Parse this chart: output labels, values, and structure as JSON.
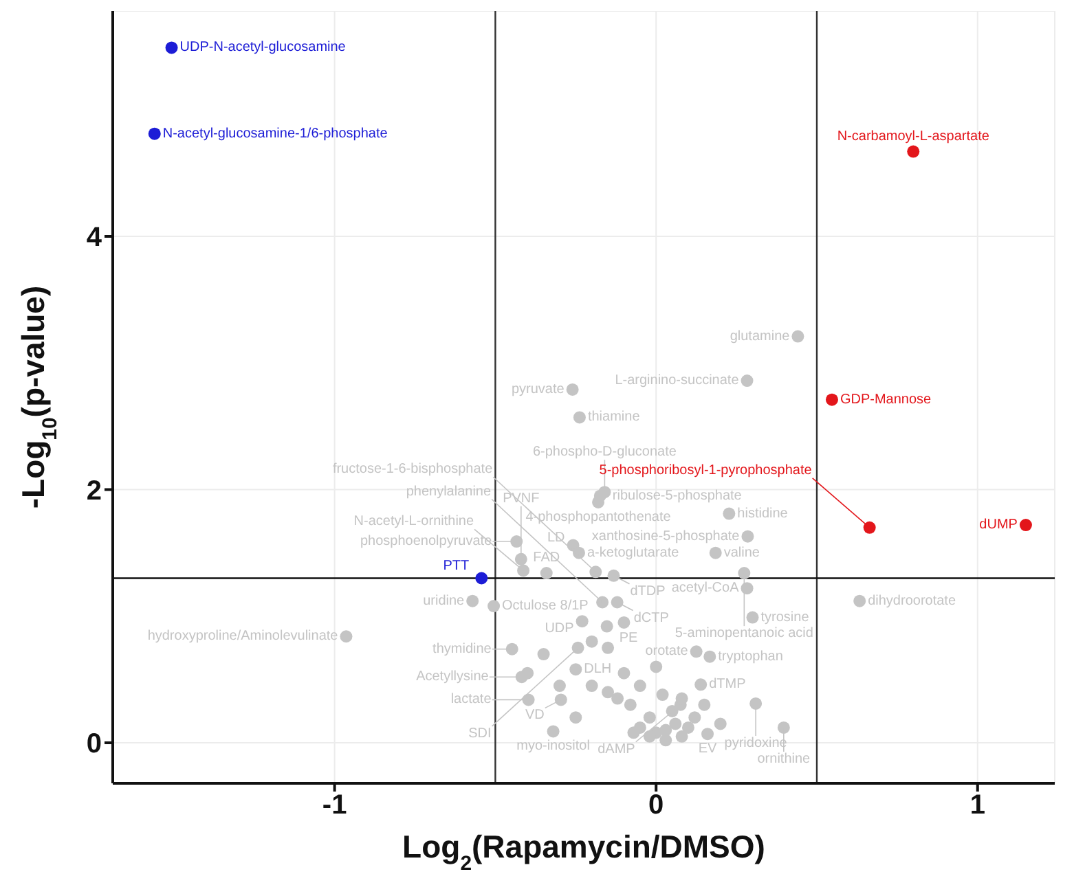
{
  "chart_data": {
    "type": "scatter",
    "xlabel": "Log$_{2}$(Rapamycin/DMSO)",
    "ylabel": "-Log$_{10}$(p-value)",
    "xlim": [
      -1.69,
      1.24
    ],
    "ylim": [
      -0.32,
      5.78
    ],
    "xticks": [
      -1,
      0,
      1
    ],
    "yticks": [
      0,
      2,
      4
    ],
    "grid": true,
    "marker": "circle",
    "ref_lines": [
      {
        "axis": "x",
        "value": -0.5,
        "color": "#333333"
      },
      {
        "axis": "x",
        "value": 0.5,
        "color": "#333333"
      },
      {
        "axis": "y",
        "value": 1.3,
        "color": "#111111"
      }
    ],
    "series": [
      {
        "color": "#1c1cd6",
        "x": [
          -1.507,
          -1.56,
          -0.543
        ],
        "values": [
          5.49,
          4.81,
          1.3
        ]
      },
      {
        "color": "#e3161b",
        "x": [
          0.8,
          0.547,
          0.664,
          1.15
        ],
        "values": [
          4.67,
          2.71,
          1.7,
          1.72
        ]
      },
      {
        "color": "#c4c4c4",
        "x": [
          0.441,
          0.283,
          -0.26,
          -0.238,
          -0.174,
          -0.18,
          -0.16,
          0.227,
          0.285,
          0.185,
          0.274,
          0.283,
          0.3,
          0.633,
          0.125,
          0.167,
          0.139,
          0.31,
          0.397,
          0.16,
          0.076,
          -0.296,
          -0.32,
          -0.397,
          -0.448,
          -0.418,
          -0.505,
          -0.571,
          -0.964,
          -0.434,
          -0.413,
          -0.341,
          -0.258,
          -0.24,
          -0.188,
          -0.132,
          -0.167,
          -0.121,
          -0.23,
          -0.153,
          -0.243,
          -0.25,
          -0.42,
          -0.05,
          0.0,
          0.03,
          0.06,
          -0.02,
          0.1,
          0.12,
          0.05,
          -0.08,
          -0.12,
          -0.15,
          -0.2,
          -0.1,
          -0.05,
          0.02,
          0.08,
          0.15,
          0.2,
          -0.25,
          -0.3,
          -0.35,
          -0.4,
          -0.2,
          -0.15,
          -0.1,
          0.0,
          -0.02,
          0.03,
          -0.07,
          0.08
        ],
        "values": [
          3.21,
          2.86,
          2.79,
          2.57,
          1.95,
          1.9,
          1.98,
          1.81,
          1.63,
          1.5,
          1.34,
          1.22,
          0.99,
          1.12,
          0.72,
          0.68,
          0.46,
          0.31,
          0.12,
          0.07,
          0.3,
          0.34,
          0.09,
          0.34,
          0.74,
          0.52,
          1.08,
          1.12,
          0.84,
          1.59,
          1.36,
          1.34,
          1.56,
          1.5,
          1.35,
          1.32,
          1.11,
          1.11,
          0.96,
          0.92,
          0.75,
          0.58,
          1.45,
          0.12,
          0.08,
          0.1,
          0.15,
          0.2,
          0.12,
          0.2,
          0.25,
          0.3,
          0.35,
          0.4,
          0.45,
          0.55,
          0.45,
          0.38,
          0.35,
          0.3,
          0.15,
          0.2,
          0.45,
          0.7,
          0.55,
          0.8,
          0.75,
          0.95,
          0.6,
          0.05,
          0.02,
          0.08,
          0.05
        ]
      }
    ],
    "annotations": [
      {
        "text": "UDP-N-acetyl-glucosamine",
        "x": -1.507,
        "y": 5.49
      },
      {
        "text": "N-acetyl-glucosamine-1/6-phosphate",
        "x": -1.56,
        "y": 4.81
      },
      {
        "text": "PTT",
        "x": -0.543,
        "y": 1.3
      },
      {
        "text": "N-carbamoyl-L-aspartate",
        "x": 0.8,
        "y": 4.67
      },
      {
        "text": "GDP-Mannose",
        "x": 0.547,
        "y": 2.71
      },
      {
        "text": "5-phosphoribosyl-1-pyrophosphate",
        "x": 0.664,
        "y": 1.7
      },
      {
        "text": "dUMP",
        "x": 1.15,
        "y": 1.72
      },
      {
        "text": "glutamine",
        "x": 0.441,
        "y": 3.21
      },
      {
        "text": "L-arginino-succinate",
        "x": 0.283,
        "y": 2.86
      },
      {
        "text": "pyruvate",
        "x": -0.26,
        "y": 2.79
      },
      {
        "text": "thiamine",
        "x": -0.238,
        "y": 2.57
      },
      {
        "text": "ribulose-5-phosphate",
        "x": -0.174,
        "y": 1.95
      },
      {
        "text": "4-phosphopantothenate",
        "x": -0.18,
        "y": 1.9
      },
      {
        "text": "6-phospho-D-gluconate",
        "x": -0.16,
        "y": 1.98
      },
      {
        "text": "histidine",
        "x": 0.227,
        "y": 1.81
      },
      {
        "text": "xanthosine-5-phosphate",
        "x": 0.285,
        "y": 1.63
      },
      {
        "text": "valine",
        "x": 0.185,
        "y": 1.5
      },
      {
        "text": "5-aminopentanoic acid",
        "x": 0.274,
        "y": 1.34
      },
      {
        "text": "acetyl-CoA",
        "x": 0.283,
        "y": 1.22
      },
      {
        "text": "tyrosine",
        "x": 0.3,
        "y": 0.99
      },
      {
        "text": "dihydroorotate",
        "x": 0.633,
        "y": 1.12
      },
      {
        "text": "orotate",
        "x": 0.125,
        "y": 0.72
      },
      {
        "text": "tryptophan",
        "x": 0.167,
        "y": 0.68
      },
      {
        "text": "dTMP",
        "x": 0.139,
        "y": 0.46
      },
      {
        "text": "pyridoxine",
        "x": 0.31,
        "y": 0.31
      },
      {
        "text": "ornithine",
        "x": 0.397,
        "y": 0.12
      },
      {
        "text": "EV",
        "x": 0.16,
        "y": 0.07
      },
      {
        "text": "dAMP",
        "x": 0.076,
        "y": 0.3
      },
      {
        "text": "VD",
        "x": -0.296,
        "y": 0.34
      },
      {
        "text": "myo-inositol",
        "x": -0.32,
        "y": 0.09
      },
      {
        "text": "lactate",
        "x": -0.397,
        "y": 0.34
      },
      {
        "text": "thymidine",
        "x": -0.448,
        "y": 0.74
      },
      {
        "text": "Acetyllysine",
        "x": -0.418,
        "y": 0.52
      },
      {
        "text": "Octulose 8/1P",
        "x": -0.505,
        "y": 1.08
      },
      {
        "text": "uridine",
        "x": -0.571,
        "y": 1.12
      },
      {
        "text": "hydroxyproline/Aminolevulinate",
        "x": -0.964,
        "y": 0.84
      },
      {
        "text": "phosphoenolpyruvate",
        "x": -0.434,
        "y": 1.59
      },
      {
        "text": "N-acetyl-L-ornithine",
        "x": -0.413,
        "y": 1.36
      },
      {
        "text": "FAD",
        "x": -0.341,
        "y": 1.34
      },
      {
        "text": "LD",
        "x": -0.258,
        "y": 1.56
      },
      {
        "text": "a-ketoglutarate",
        "x": -0.24,
        "y": 1.5
      },
      {
        "text": "fructose-1-6-bisphosphate",
        "x": -0.188,
        "y": 1.35
      },
      {
        "text": "dTDP",
        "x": -0.132,
        "y": 1.32
      },
      {
        "text": "phenylalanine",
        "x": -0.167,
        "y": 1.11
      },
      {
        "text": "dCTP",
        "x": -0.121,
        "y": 1.11
      },
      {
        "text": "UDP",
        "x": -0.23,
        "y": 0.96
      },
      {
        "text": "PE",
        "x": -0.153,
        "y": 0.92
      },
      {
        "text": "SDI",
        "x": -0.243,
        "y": 0.75
      },
      {
        "text": "DLH",
        "x": -0.25,
        "y": 0.58
      },
      {
        "text": "PVNF",
        "x": -0.42,
        "y": 1.45
      }
    ]
  }
}
